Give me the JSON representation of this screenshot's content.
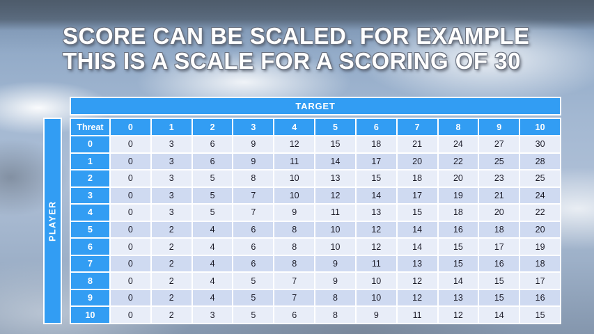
{
  "title": {
    "line1": "SCORE CAN BE SCALED. FOR EXAMPLE",
    "line2": "THIS IS A SCALE FOR A SCORING OF 30"
  },
  "colors": {
    "accent": "#329DF3",
    "row_light": "#E8EDF8",
    "row_dark": "#CFDAF1",
    "cell_text": "#1B1B28"
  },
  "chart_data": {
    "type": "table",
    "title": "Scoring scale table for a scoring of 30",
    "column_group_label": "TARGET",
    "row_group_label": "PLAYER",
    "corner_label": "Threat",
    "columns": [
      "0",
      "1",
      "2",
      "3",
      "4",
      "5",
      "6",
      "7",
      "8",
      "9",
      "10"
    ],
    "rows": [
      {
        "threat": "0",
        "values": [
          0,
          3,
          6,
          9,
          12,
          15,
          18,
          21,
          24,
          27,
          30
        ]
      },
      {
        "threat": "1",
        "values": [
          0,
          3,
          6,
          9,
          11,
          14,
          17,
          20,
          22,
          25,
          28
        ]
      },
      {
        "threat": "2",
        "values": [
          0,
          3,
          5,
          8,
          10,
          13,
          15,
          18,
          20,
          23,
          25
        ]
      },
      {
        "threat": "3",
        "values": [
          0,
          3,
          5,
          7,
          10,
          12,
          14,
          17,
          19,
          21,
          24
        ]
      },
      {
        "threat": "4",
        "values": [
          0,
          3,
          5,
          7,
          9,
          11,
          13,
          15,
          18,
          20,
          22
        ]
      },
      {
        "threat": "5",
        "values": [
          0,
          2,
          4,
          6,
          8,
          10,
          12,
          14,
          16,
          18,
          20
        ]
      },
      {
        "threat": "6",
        "values": [
          0,
          2,
          4,
          6,
          8,
          10,
          12,
          14,
          15,
          17,
          19
        ]
      },
      {
        "threat": "7",
        "values": [
          0,
          2,
          4,
          6,
          8,
          9,
          11,
          13,
          15,
          16,
          18
        ]
      },
      {
        "threat": "8",
        "values": [
          0,
          2,
          4,
          5,
          7,
          9,
          10,
          12,
          14,
          15,
          17
        ]
      },
      {
        "threat": "9",
        "values": [
          0,
          2,
          4,
          5,
          7,
          8,
          10,
          12,
          13,
          15,
          16
        ]
      },
      {
        "threat": "10",
        "values": [
          0,
          2,
          3,
          5,
          6,
          8,
          9,
          11,
          12,
          14,
          15
        ]
      }
    ]
  }
}
